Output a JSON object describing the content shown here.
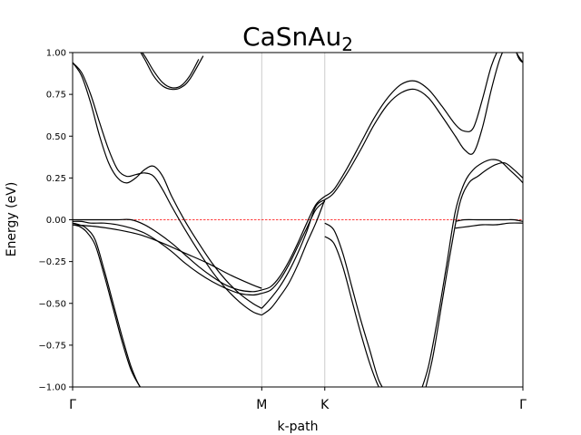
{
  "chart_data": {
    "type": "line",
    "title": "CaSnAu",
    "title_subscript": "2",
    "xlabel": "k-path",
    "ylabel": "Energy (eV)",
    "ylim": [
      -1.0,
      1.0
    ],
    "xlim": [
      0,
      1
    ],
    "yticks": [
      -1.0,
      -0.75,
      -0.5,
      -0.25,
      0.0,
      0.25,
      0.5,
      0.75,
      1.0
    ],
    "ytick_labels": [
      "−1.00",
      "−0.75",
      "−0.50",
      "−0.25",
      "0.00",
      "0.25",
      "0.50",
      "0.75",
      "1.00"
    ],
    "high_symmetry_points": [
      {
        "label": "Γ",
        "x": 0.0
      },
      {
        "label": "M",
        "x": 0.42
      },
      {
        "label": "K",
        "x": 0.56
      },
      {
        "label": "Γ",
        "x": 1.0
      }
    ],
    "fermi_level": 0.0,
    "colors": {
      "bands": "#000000",
      "fermi": "#ff0000",
      "vlines": "#cccccc"
    },
    "series": [
      {
        "x": [
          0.0,
          0.015,
          0.03,
          0.05,
          0.07,
          0.09,
          0.11,
          0.13,
          0.15,
          0.17
        ],
        "y": [
          -0.02,
          -0.03,
          -0.05,
          -0.12,
          -0.3,
          -0.5,
          -0.7,
          -0.88,
          -1.0,
          -1.05
        ]
      },
      {
        "x": [
          0.0,
          0.015,
          0.03,
          0.05,
          0.07,
          0.09,
          0.11,
          0.13,
          0.15,
          0.165
        ],
        "y": [
          -0.03,
          -0.04,
          -0.07,
          -0.15,
          -0.33,
          -0.53,
          -0.73,
          -0.9,
          -1.0,
          -1.05
        ]
      },
      {
        "x": [
          0.0,
          0.02,
          0.04,
          0.06,
          0.08,
          0.1,
          0.12,
          0.14,
          0.16,
          0.18,
          0.2,
          0.22,
          0.25,
          0.28,
          0.31,
          0.34,
          0.37,
          0.4,
          0.42
        ],
        "y": [
          0.94,
          0.88,
          0.75,
          0.58,
          0.42,
          0.3,
          0.26,
          0.27,
          0.28,
          0.26,
          0.18,
          0.08,
          -0.06,
          -0.19,
          -0.31,
          -0.41,
          -0.49,
          -0.55,
          -0.57
        ]
      },
      {
        "x": [
          0.42,
          0.44,
          0.46,
          0.48,
          0.5,
          0.52,
          0.54,
          0.56
        ],
        "y": [
          -0.57,
          -0.53,
          -0.46,
          -0.38,
          -0.27,
          -0.14,
          -0.02,
          0.12
        ]
      },
      {
        "x": [
          0.0,
          0.02,
          0.04,
          0.06,
          0.08,
          0.1,
          0.12,
          0.14,
          0.16,
          0.18,
          0.2,
          0.22,
          0.25,
          0.28,
          0.31,
          0.34,
          0.37,
          0.4,
          0.42
        ],
        "y": [
          0.94,
          0.86,
          0.7,
          0.5,
          0.34,
          0.25,
          0.22,
          0.25,
          0.3,
          0.32,
          0.26,
          0.14,
          -0.01,
          -0.14,
          -0.26,
          -0.36,
          -0.44,
          -0.5,
          -0.53
        ]
      },
      {
        "x": [
          0.42,
          0.44,
          0.46,
          0.48,
          0.5,
          0.52,
          0.54,
          0.56
        ],
        "y": [
          -0.53,
          -0.47,
          -0.4,
          -0.31,
          -0.2,
          -0.07,
          0.08,
          0.12
        ]
      },
      {
        "x": [
          0.0,
          0.02,
          0.04,
          0.07,
          0.1,
          0.13,
          0.16,
          0.19,
          0.22,
          0.25,
          0.28,
          0.31,
          0.34,
          0.37,
          0.4,
          0.42
        ],
        "y": [
          0.0,
          0.0,
          0.0,
          -0.0,
          0.0,
          0.0,
          -0.03,
          -0.08,
          -0.14,
          -0.21,
          -0.28,
          -0.34,
          -0.39,
          -0.42,
          -0.43,
          -0.42
        ]
      },
      {
        "x": [
          0.42,
          0.44,
          0.46,
          0.48,
          0.5,
          0.52,
          0.54,
          0.56
        ],
        "y": [
          -0.42,
          -0.4,
          -0.34,
          -0.25,
          -0.14,
          -0.02,
          0.09,
          0.14
        ]
      },
      {
        "x": [
          0.0,
          0.02,
          0.04,
          0.07,
          0.1,
          0.13,
          0.16,
          0.19,
          0.22,
          0.25,
          0.28,
          0.31,
          0.34,
          0.37,
          0.4,
          0.42
        ],
        "y": [
          -0.01,
          -0.01,
          -0.02,
          -0.02,
          -0.03,
          -0.05,
          -0.08,
          -0.13,
          -0.19,
          -0.26,
          -0.32,
          -0.37,
          -0.41,
          -0.44,
          -0.45,
          -0.44
        ]
      },
      {
        "x": [
          0.42,
          0.44,
          0.46,
          0.48,
          0.5,
          0.52,
          0.54,
          0.56
        ],
        "y": [
          -0.44,
          -0.42,
          -0.36,
          -0.27,
          -0.16,
          -0.05,
          0.06,
          0.11
        ]
      },
      {
        "x": [
          0.56,
          0.58,
          0.61,
          0.64,
          0.67,
          0.7,
          0.73,
          0.76,
          0.79,
          0.82,
          0.85,
          0.87,
          0.89,
          0.91,
          0.93,
          0.95,
          0.97,
          0.99,
          1.0
        ],
        "y": [
          0.14,
          0.18,
          0.31,
          0.46,
          0.61,
          0.73,
          0.81,
          0.83,
          0.78,
          0.68,
          0.57,
          0.53,
          0.55,
          0.72,
          0.92,
          1.04,
          1.1,
          0.97,
          0.94
        ]
      },
      {
        "x": [
          0.56,
          0.58,
          0.61,
          0.64,
          0.67,
          0.7,
          0.73,
          0.76,
          0.79,
          0.82,
          0.85,
          0.87,
          0.89,
          0.91,
          0.93,
          0.95,
          0.97,
          0.99,
          1.0
        ],
        "y": [
          0.12,
          0.16,
          0.28,
          0.42,
          0.57,
          0.69,
          0.76,
          0.78,
          0.73,
          0.62,
          0.5,
          0.42,
          0.4,
          0.55,
          0.78,
          0.97,
          1.06,
          0.98,
          0.94
        ]
      },
      {
        "x": [
          0.56,
          0.58,
          0.6,
          0.62,
          0.64,
          0.66,
          0.68,
          0.7
        ],
        "y": [
          -0.02,
          -0.06,
          -0.2,
          -0.4,
          -0.6,
          -0.78,
          -0.96,
          -1.05
        ]
      },
      {
        "x": [
          0.56,
          0.58,
          0.6,
          0.62,
          0.64,
          0.66,
          0.68,
          0.695
        ],
        "y": [
          -0.1,
          -0.14,
          -0.28,
          -0.48,
          -0.68,
          -0.86,
          -1.0,
          -1.05
        ]
      },
      {
        "x": [
          0.77,
          0.79,
          0.81,
          0.83,
          0.85,
          0.87,
          0.89,
          0.91,
          0.93,
          0.95,
          0.97,
          0.99,
          1.0
        ],
        "y": [
          -1.05,
          -0.88,
          -0.6,
          -0.28,
          0.05,
          0.22,
          0.3,
          0.34,
          0.36,
          0.35,
          0.3,
          0.25,
          0.22
        ]
      },
      {
        "x": [
          0.78,
          0.8,
          0.82,
          0.84,
          0.86,
          0.88,
          0.9,
          0.92,
          0.94,
          0.96,
          0.98,
          1.0
        ],
        "y": [
          -1.05,
          -0.82,
          -0.5,
          -0.18,
          0.1,
          0.22,
          0.26,
          0.3,
          0.33,
          0.34,
          0.3,
          0.25
        ]
      },
      {
        "x": [
          0.0,
          0.05,
          0.1,
          0.15,
          0.2,
          0.25,
          0.3,
          0.35,
          0.4,
          0.42
        ],
        "y": [
          -0.03,
          -0.04,
          -0.06,
          -0.09,
          -0.14,
          -0.2,
          -0.26,
          -0.33,
          -0.39,
          -0.41
        ]
      },
      {
        "x": [
          0.14,
          0.16,
          0.18,
          0.2,
          0.22,
          0.24,
          0.26,
          0.28
        ],
        "y": [
          1.05,
          0.98,
          0.89,
          0.82,
          0.79,
          0.8,
          0.86,
          0.96
        ]
      },
      {
        "x": [
          0.14,
          0.16,
          0.18,
          0.2,
          0.22,
          0.24,
          0.26,
          0.29
        ],
        "y": [
          1.05,
          0.96,
          0.86,
          0.8,
          0.78,
          0.79,
          0.84,
          0.98
        ]
      },
      {
        "x": [
          0.85,
          0.87,
          0.9,
          0.93,
          0.96,
          0.98,
          1.0
        ],
        "y": [
          -0.01,
          0.0,
          0.0,
          0.0,
          0.0,
          -0.0,
          -0.01
        ]
      },
      {
        "x": [
          0.85,
          0.88,
          0.91,
          0.94,
          0.97,
          1.0
        ],
        "y": [
          -0.05,
          -0.04,
          -0.03,
          -0.03,
          -0.02,
          -0.02
        ]
      }
    ]
  }
}
